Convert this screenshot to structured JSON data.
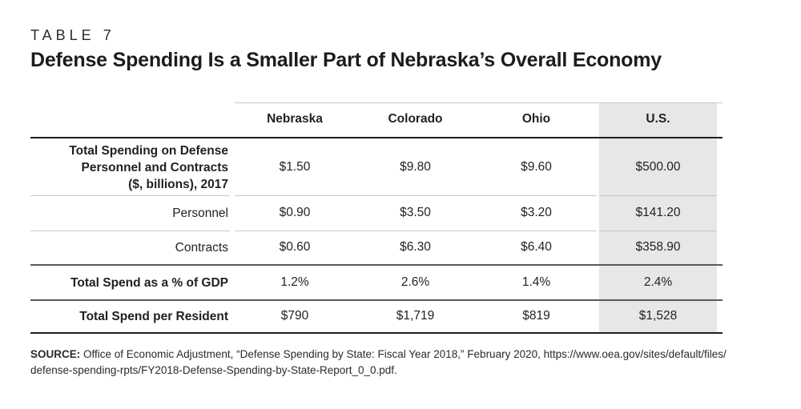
{
  "kicker": "TABLE 7",
  "title": "Defense Spending Is a Smaller Part of Nebraska’s Overall Economy",
  "table": {
    "columns": [
      "Nebraska",
      "Colorado",
      "Ohio",
      "U.S."
    ],
    "highlighted_column": "U.S.",
    "rows": [
      {
        "label": "Total Spending on Defense Personnel and Contracts ($, billions), 2017",
        "label_lines": [
          "Total Spending on Defense",
          "Personnel and Contracts",
          "($, billions), 2017"
        ],
        "values": [
          "$1.50",
          "$9.80",
          "$9.60",
          "$500.00"
        ]
      },
      {
        "label": "Personnel",
        "values": [
          "$0.90",
          "$3.50",
          "$3.20",
          "$141.20"
        ]
      },
      {
        "label": "Contracts",
        "values": [
          "$0.60",
          "$6.30",
          "$6.40",
          "$358.90"
        ]
      },
      {
        "label": "Total Spend as a % of GDP",
        "values": [
          "1.2%",
          "2.6%",
          "1.4%",
          "2.4%"
        ]
      },
      {
        "label": "Total Spend per Resident",
        "values": [
          "$790",
          "$1,719",
          "$819",
          "$1,528"
        ]
      }
    ]
  },
  "source": {
    "label": "SOURCE:",
    "lines": [
      "Office of Economic Adjustment, “Defense Spending by State: Fiscal Year 2018,” February 2020, https://www.oea.gov/sites/default/files/",
      "defense-spending-rpts/FY2018-Defense-Spending-by-State-Report_0_0.pdf."
    ]
  },
  "colors": {
    "highlight_column_bg": "#e7e7e8",
    "rule_black": "#231f20",
    "rule_medium_gray": "#595a5c",
    "rule_light_gray": "#c9c9c9",
    "text": "#231f20"
  }
}
